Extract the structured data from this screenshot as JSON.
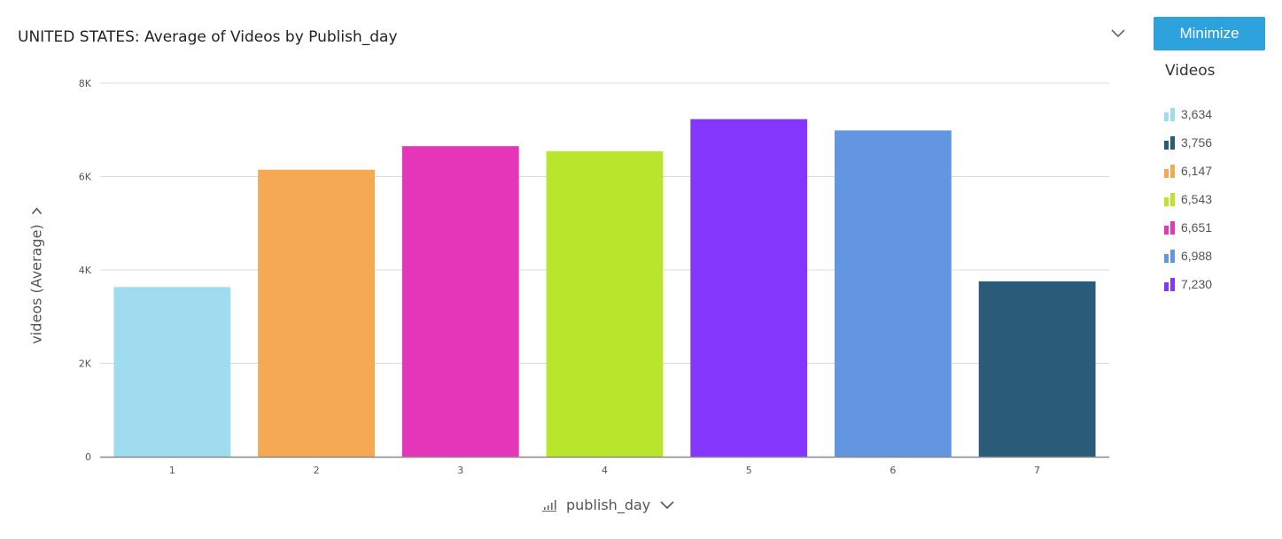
{
  "header": {
    "title": "UNITED STATES: Average of Videos by Publish_day",
    "minimize_label": "Minimize"
  },
  "legend": {
    "title": "Videos",
    "items": [
      {
        "label": "3,634",
        "color": "#a0dcf0"
      },
      {
        "label": "3,756",
        "color": "#2a5b78"
      },
      {
        "label": "6,147",
        "color": "#f5a953"
      },
      {
        "label": "6,543",
        "color": "#bae52d"
      },
      {
        "label": "6,651",
        "color": "#e535b9"
      },
      {
        "label": "6,988",
        "color": "#6296e0"
      },
      {
        "label": "7,230",
        "color": "#8436fd"
      }
    ]
  },
  "axes": {
    "y_title": "videos (Average)",
    "x_title": "publish_day"
  },
  "icons": {
    "title_menu": "chevron-down-icon",
    "y_menu": "chevron-down-icon",
    "x_menu": "chevron-down-icon",
    "x_sort": "sort-icon"
  },
  "chart_data": {
    "type": "bar",
    "title": "UNITED STATES: Average of Videos by Publish_day",
    "xlabel": "publish_day",
    "ylabel": "videos (Average)",
    "categories": [
      "1",
      "2",
      "3",
      "4",
      "5",
      "6",
      "7"
    ],
    "values": [
      3634,
      6147,
      6651,
      6543,
      7230,
      6988,
      3756
    ],
    "colors": [
      "#a0dcf0",
      "#f5a953",
      "#e535b9",
      "#bae52d",
      "#8436fd",
      "#6296e0",
      "#2a5b78"
    ],
    "ylim": [
      0,
      8000
    ],
    "yticks": [
      0,
      2000,
      4000,
      6000,
      8000
    ],
    "ytick_labels": [
      "0",
      "2K",
      "4K",
      "6K",
      "8K"
    ],
    "grid": true,
    "legend_position": "right"
  }
}
